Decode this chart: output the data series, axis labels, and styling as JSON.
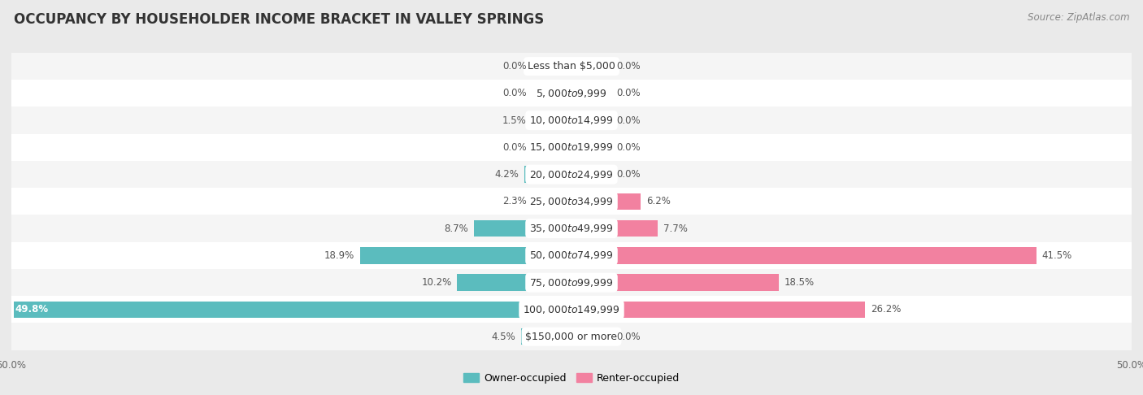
{
  "title": "OCCUPANCY BY HOUSEHOLDER INCOME BRACKET IN VALLEY SPRINGS",
  "source": "Source: ZipAtlas.com",
  "categories": [
    "Less than $5,000",
    "$5,000 to $9,999",
    "$10,000 to $14,999",
    "$15,000 to $19,999",
    "$20,000 to $24,999",
    "$25,000 to $34,999",
    "$35,000 to $49,999",
    "$50,000 to $74,999",
    "$75,000 to $99,999",
    "$100,000 to $149,999",
    "$150,000 or more"
  ],
  "owner_values": [
    0.0,
    0.0,
    1.5,
    0.0,
    4.2,
    2.3,
    8.7,
    18.9,
    10.2,
    49.8,
    4.5
  ],
  "renter_values": [
    0.0,
    0.0,
    0.0,
    0.0,
    0.0,
    6.2,
    7.7,
    41.5,
    18.5,
    26.2,
    0.0
  ],
  "owner_color": "#5bbcbe",
  "renter_color": "#f281a0",
  "bg_color": "#eaeaea",
  "row_bg_even": "#f5f5f5",
  "row_bg_odd": "#ffffff",
  "bar_height": 0.62,
  "min_bar": 3.5,
  "xlim": 50.0,
  "title_fontsize": 12,
  "label_fontsize": 8.5,
  "category_fontsize": 9,
  "source_fontsize": 8.5,
  "legend_fontsize": 9
}
